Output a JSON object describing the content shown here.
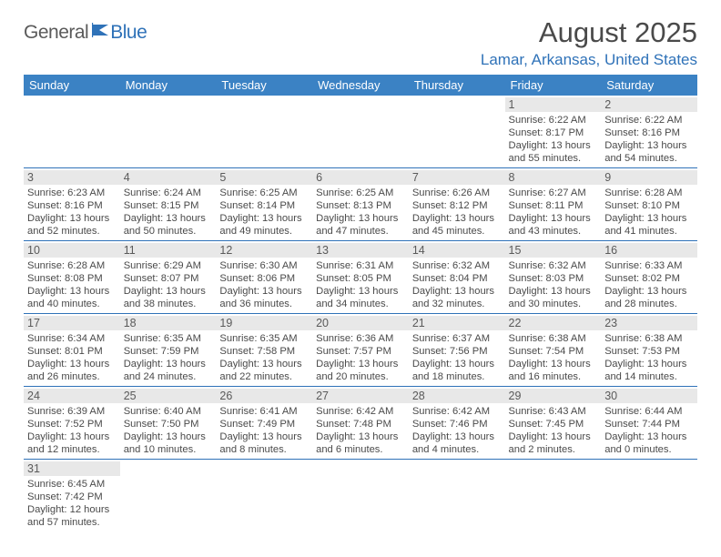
{
  "brand": {
    "general": "General",
    "blue": "Blue"
  },
  "title": "August 2025",
  "location": "Lamar, Arkansas, United States",
  "colors": {
    "header_bg": "#3b82c4",
    "accent": "#2f72b8",
    "daynum_bg": "#e8e8e8",
    "text": "#4a4a4a"
  },
  "weekdays": [
    "Sunday",
    "Monday",
    "Tuesday",
    "Wednesday",
    "Thursday",
    "Friday",
    "Saturday"
  ],
  "first_weekday_index": 5,
  "days": [
    {
      "n": 1,
      "sr": "6:22 AM",
      "ss": "8:17 PM",
      "dl": "13 hours and 55 minutes."
    },
    {
      "n": 2,
      "sr": "6:22 AM",
      "ss": "8:16 PM",
      "dl": "13 hours and 54 minutes."
    },
    {
      "n": 3,
      "sr": "6:23 AM",
      "ss": "8:16 PM",
      "dl": "13 hours and 52 minutes."
    },
    {
      "n": 4,
      "sr": "6:24 AM",
      "ss": "8:15 PM",
      "dl": "13 hours and 50 minutes."
    },
    {
      "n": 5,
      "sr": "6:25 AM",
      "ss": "8:14 PM",
      "dl": "13 hours and 49 minutes."
    },
    {
      "n": 6,
      "sr": "6:25 AM",
      "ss": "8:13 PM",
      "dl": "13 hours and 47 minutes."
    },
    {
      "n": 7,
      "sr": "6:26 AM",
      "ss": "8:12 PM",
      "dl": "13 hours and 45 minutes."
    },
    {
      "n": 8,
      "sr": "6:27 AM",
      "ss": "8:11 PM",
      "dl": "13 hours and 43 minutes."
    },
    {
      "n": 9,
      "sr": "6:28 AM",
      "ss": "8:10 PM",
      "dl": "13 hours and 41 minutes."
    },
    {
      "n": 10,
      "sr": "6:28 AM",
      "ss": "8:08 PM",
      "dl": "13 hours and 40 minutes."
    },
    {
      "n": 11,
      "sr": "6:29 AM",
      "ss": "8:07 PM",
      "dl": "13 hours and 38 minutes."
    },
    {
      "n": 12,
      "sr": "6:30 AM",
      "ss": "8:06 PM",
      "dl": "13 hours and 36 minutes."
    },
    {
      "n": 13,
      "sr": "6:31 AM",
      "ss": "8:05 PM",
      "dl": "13 hours and 34 minutes."
    },
    {
      "n": 14,
      "sr": "6:32 AM",
      "ss": "8:04 PM",
      "dl": "13 hours and 32 minutes."
    },
    {
      "n": 15,
      "sr": "6:32 AM",
      "ss": "8:03 PM",
      "dl": "13 hours and 30 minutes."
    },
    {
      "n": 16,
      "sr": "6:33 AM",
      "ss": "8:02 PM",
      "dl": "13 hours and 28 minutes."
    },
    {
      "n": 17,
      "sr": "6:34 AM",
      "ss": "8:01 PM",
      "dl": "13 hours and 26 minutes."
    },
    {
      "n": 18,
      "sr": "6:35 AM",
      "ss": "7:59 PM",
      "dl": "13 hours and 24 minutes."
    },
    {
      "n": 19,
      "sr": "6:35 AM",
      "ss": "7:58 PM",
      "dl": "13 hours and 22 minutes."
    },
    {
      "n": 20,
      "sr": "6:36 AM",
      "ss": "7:57 PM",
      "dl": "13 hours and 20 minutes."
    },
    {
      "n": 21,
      "sr": "6:37 AM",
      "ss": "7:56 PM",
      "dl": "13 hours and 18 minutes."
    },
    {
      "n": 22,
      "sr": "6:38 AM",
      "ss": "7:54 PM",
      "dl": "13 hours and 16 minutes."
    },
    {
      "n": 23,
      "sr": "6:38 AM",
      "ss": "7:53 PM",
      "dl": "13 hours and 14 minutes."
    },
    {
      "n": 24,
      "sr": "6:39 AM",
      "ss": "7:52 PM",
      "dl": "13 hours and 12 minutes."
    },
    {
      "n": 25,
      "sr": "6:40 AM",
      "ss": "7:50 PM",
      "dl": "13 hours and 10 minutes."
    },
    {
      "n": 26,
      "sr": "6:41 AM",
      "ss": "7:49 PM",
      "dl": "13 hours and 8 minutes."
    },
    {
      "n": 27,
      "sr": "6:42 AM",
      "ss": "7:48 PM",
      "dl": "13 hours and 6 minutes."
    },
    {
      "n": 28,
      "sr": "6:42 AM",
      "ss": "7:46 PM",
      "dl": "13 hours and 4 minutes."
    },
    {
      "n": 29,
      "sr": "6:43 AM",
      "ss": "7:45 PM",
      "dl": "13 hours and 2 minutes."
    },
    {
      "n": 30,
      "sr": "6:44 AM",
      "ss": "7:44 PM",
      "dl": "13 hours and 0 minutes."
    },
    {
      "n": 31,
      "sr": "6:45 AM",
      "ss": "7:42 PM",
      "dl": "12 hours and 57 minutes."
    }
  ],
  "labels": {
    "sunrise": "Sunrise:",
    "sunset": "Sunset:",
    "daylight": "Daylight:"
  }
}
